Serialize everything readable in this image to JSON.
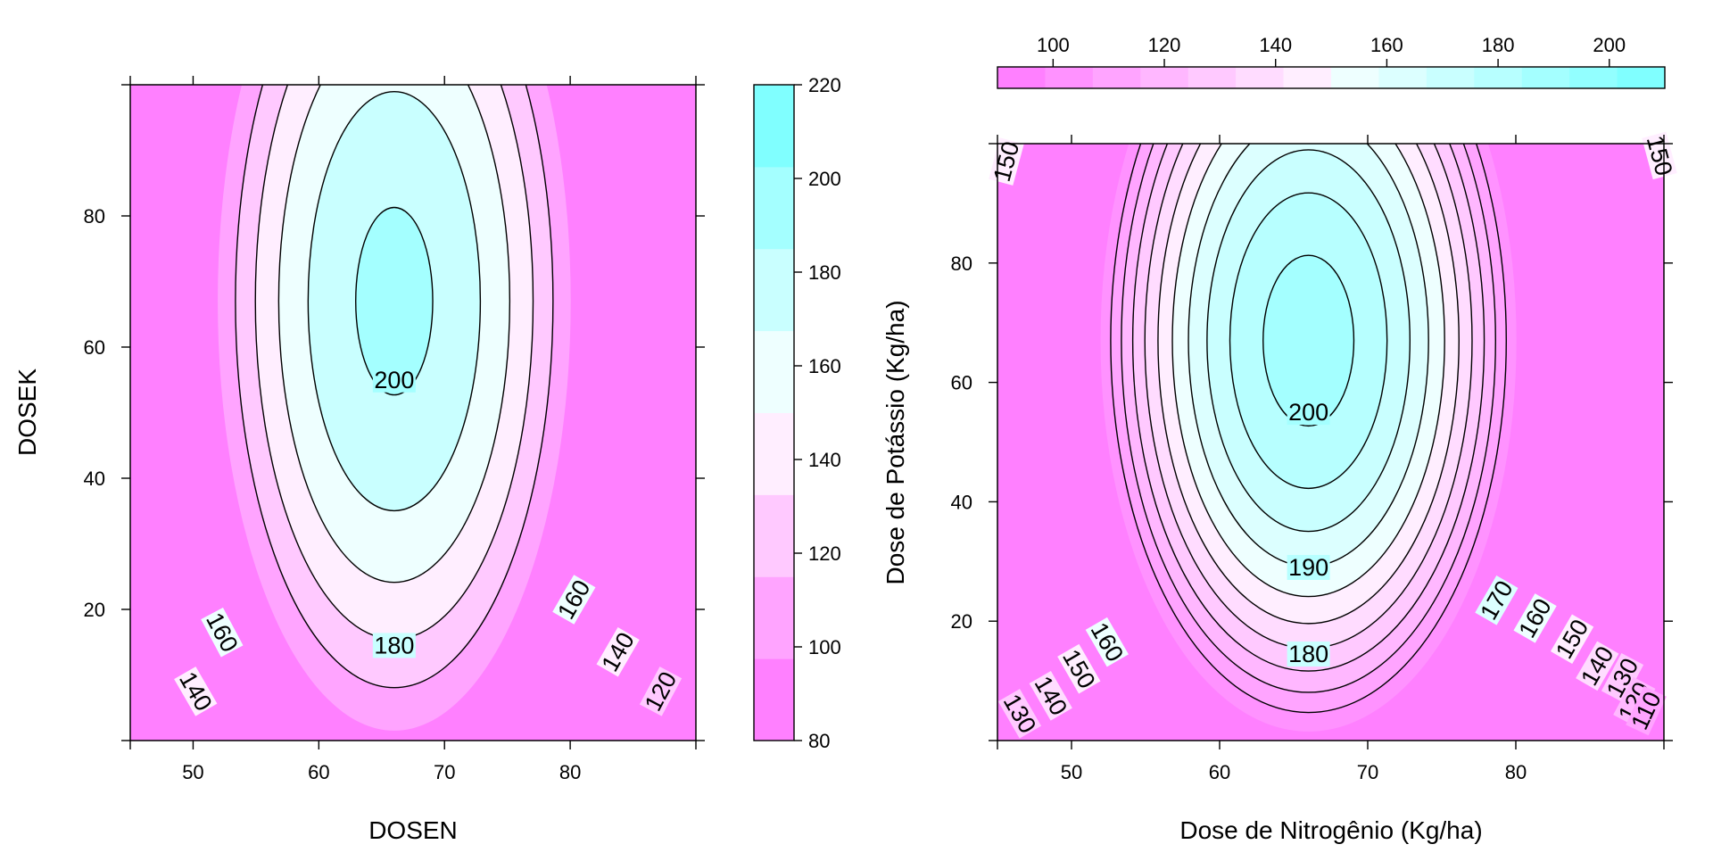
{
  "chart_data": [
    {
      "type": "contour",
      "xlabel": "DOSEN",
      "ylabel": "DOSEK",
      "xlim": [
        45,
        90
      ],
      "ylim": [
        0,
        100
      ],
      "x_ticks": [
        50,
        60,
        70,
        80
      ],
      "y_ticks": [
        20,
        40,
        60,
        80
      ],
      "center": {
        "x": 66,
        "y": 67
      },
      "surface_max": 205,
      "levels": [
        80,
        100,
        120,
        140,
        160,
        180,
        200,
        220
      ],
      "contour_lines": [
        120,
        140,
        160,
        180,
        200
      ],
      "contour_labels": [
        {
          "level": 200,
          "x": 66,
          "y": 55,
          "angle": 0
        },
        {
          "level": 180,
          "x": 66,
          "y": 14.5,
          "angle": 0
        },
        {
          "level": 160,
          "x": 52.3,
          "y": 16.5,
          "angle": 62
        },
        {
          "level": 140,
          "x": 50.2,
          "y": 7.5,
          "angle": 60
        },
        {
          "level": 160,
          "x": 80.3,
          "y": 21.5,
          "angle": -60
        },
        {
          "level": 140,
          "x": 83.8,
          "y": 13.5,
          "angle": -60
        },
        {
          "level": 120,
          "x": 87.2,
          "y": 7.5,
          "angle": -62
        }
      ],
      "colorkey": {
        "position": "right",
        "labels": [
          "80",
          "100",
          "120",
          "140",
          "160",
          "180",
          "200",
          "220"
        ],
        "colors": [
          "#ff80ff",
          "#ffa4ff",
          "#ffc9ff",
          "#ffeeff",
          "#eeffff",
          "#c9ffff",
          "#a4ffff",
          "#80ffff"
        ]
      }
    },
    {
      "type": "contour",
      "xlabel": "Dose de Nitrogênio (Kg/ha)",
      "ylabel": "Dose de Potássio (Kg/ha)",
      "xlim": [
        45,
        90
      ],
      "ylim": [
        0,
        100
      ],
      "x_ticks": [
        50,
        60,
        70,
        80
      ],
      "y_ticks": [
        20,
        40,
        60,
        80
      ],
      "center": {
        "x": 66,
        "y": 67
      },
      "surface_max": 205,
      "levels": [
        90,
        100,
        110,
        120,
        130,
        140,
        150,
        160,
        170,
        180,
        190,
        200,
        210
      ],
      "contour_lines": [
        110,
        120,
        130,
        140,
        150,
        160,
        170,
        180,
        190,
        200
      ],
      "contour_labels": [
        {
          "level": 200,
          "x": 66,
          "y": 55,
          "angle": 0
        },
        {
          "level": 190,
          "x": 66,
          "y": 29,
          "angle": 0
        },
        {
          "level": 180,
          "x": 66,
          "y": 14.5,
          "angle": 0
        },
        {
          "level": 170,
          "x": 78.7,
          "y": 23.5,
          "angle": -60
        },
        {
          "level": 160,
          "x": 81.3,
          "y": 20.5,
          "angle": -60
        },
        {
          "level": 150,
          "x": 83.8,
          "y": 17,
          "angle": -60
        },
        {
          "level": 140,
          "x": 85.5,
          "y": 12.5,
          "angle": -60
        },
        {
          "level": 130,
          "x": 87.2,
          "y": 10.5,
          "angle": -62
        },
        {
          "level": 120,
          "x": 88,
          "y": 6.5,
          "angle": -62
        },
        {
          "level": 110,
          "x": 88.8,
          "y": 5,
          "angle": -65
        },
        {
          "level": 160,
          "x": 52.4,
          "y": 16.5,
          "angle": 60
        },
        {
          "level": 150,
          "x": 50.5,
          "y": 12,
          "angle": 60
        },
        {
          "level": 140,
          "x": 48.6,
          "y": 7.5,
          "angle": 60
        },
        {
          "level": 130,
          "x": 46.5,
          "y": 4.5,
          "angle": 60
        },
        {
          "level": 150,
          "x": 45.6,
          "y": 97,
          "angle": -75
        },
        {
          "level": 150,
          "x": 89.7,
          "y": 98,
          "angle": 75
        }
      ],
      "colorkey": {
        "position": "top",
        "labels": [
          "100",
          "120",
          "140",
          "160",
          "180",
          "200"
        ],
        "colors": [
          "#ff80ff",
          "#ff92ff",
          "#ffa4ff",
          "#ffb7ff",
          "#ffc9ff",
          "#ffdcff",
          "#ffeeff",
          "#eeffff",
          "#dcffff",
          "#c9ffff",
          "#b7ffff",
          "#a4ffff",
          "#92ffff",
          "#80ffff"
        ]
      }
    }
  ]
}
